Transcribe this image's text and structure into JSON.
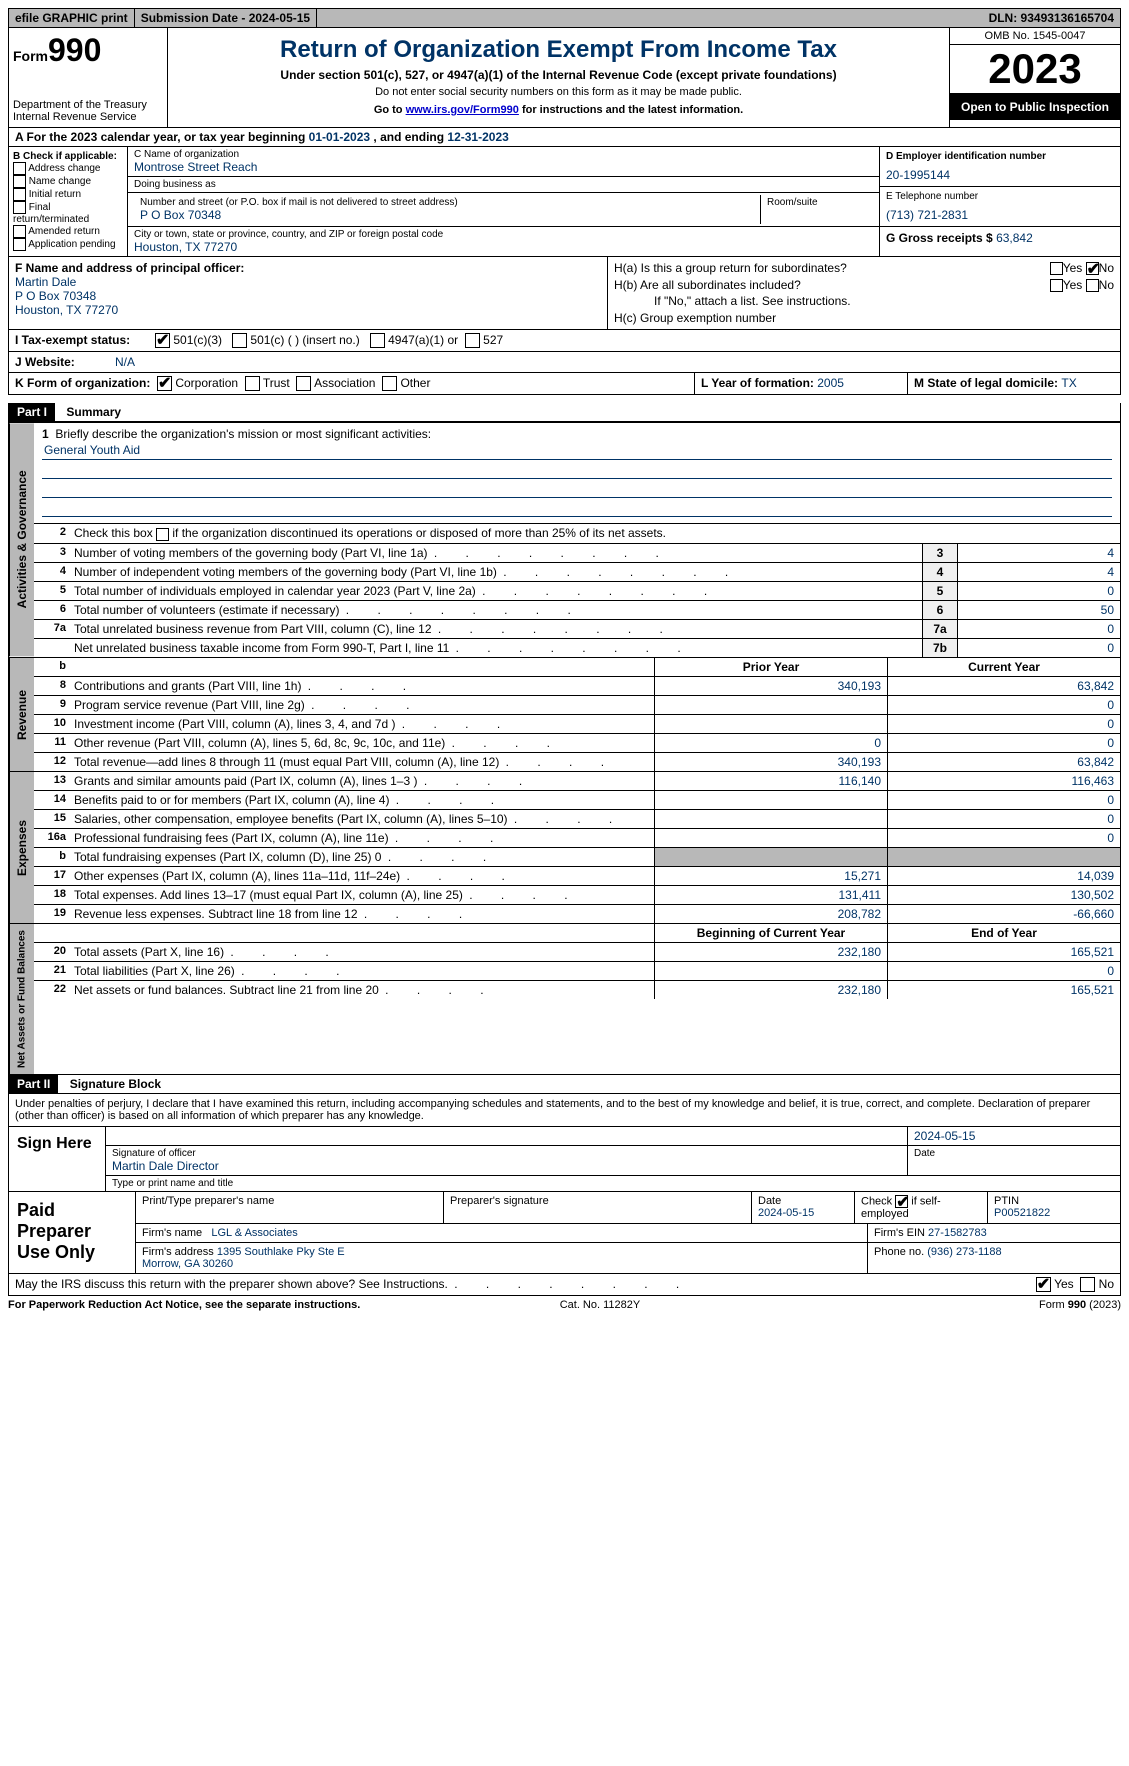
{
  "top": {
    "efile": "efile GRAPHIC print",
    "submission": "Submission Date - 2024-05-15",
    "dln": "DLN: 93493136165704"
  },
  "header": {
    "form_prefix": "Form",
    "form_number": "990",
    "dept": "Department of the Treasury\nInternal Revenue Service",
    "title": "Return of Organization Exempt From Income Tax",
    "subtitle": "Under section 501(c), 527, or 4947(a)(1) of the Internal Revenue Code (except private foundations)",
    "note1": "Do not enter social security numbers on this form as it may be made public.",
    "note2_pre": "Go to ",
    "note2_link": "www.irs.gov/Form990",
    "note2_post": " for instructions and the latest information.",
    "omb": "OMB No. 1545-0047",
    "year": "2023",
    "inspect": "Open to Public Inspection"
  },
  "period": {
    "label_a": "A For the 2023 calendar year, or tax year beginning ",
    "begin": "01-01-2023",
    "mid": " , and ending ",
    "end": "12-31-2023"
  },
  "box_b": {
    "heading": "B Check if applicable:",
    "items": [
      "Address change",
      "Name change",
      "Initial return",
      "Final return/terminated",
      "Amended return",
      "Application pending"
    ]
  },
  "box_c": {
    "name_lbl": "C Name of organization",
    "name": "Montrose Street Reach",
    "dba_lbl": "Doing business as",
    "dba": "",
    "street_lbl": "Number and street (or P.O. box if mail is not delivered to street address)",
    "street": "P O Box 70348",
    "room_lbl": "Room/suite",
    "room": "",
    "city_lbl": "City or town, state or province, country, and ZIP or foreign postal code",
    "city": "Houston, TX  77270"
  },
  "box_d": {
    "ein_lbl": "D Employer identification number",
    "ein": "20-1995144",
    "phone_lbl": "E Telephone number",
    "phone": "(713) 721-2831",
    "gross_lbl": "G Gross receipts $ ",
    "gross": "63,842"
  },
  "box_f": {
    "lbl": "F Name and address of principal officer:",
    "name": "Martin Dale",
    "addr1": "P O Box 70348",
    "addr2": "Houston, TX  77270"
  },
  "box_h": {
    "a_lbl": "H(a) Is this a group return for subordinates?",
    "a_yes": "Yes",
    "a_no": "No",
    "b_lbl": "H(b) Are all subordinates included?",
    "b_yes": "Yes",
    "b_no": "No",
    "b_note": "If \"No,\" attach a list. See instructions.",
    "c_lbl": "H(c) Group exemption number"
  },
  "tax_status": {
    "label": "I   Tax-exempt status:",
    "opt1": "501(c)(3)",
    "opt2": "501(c) (  ) (insert no.)",
    "opt3": "4947(a)(1) or",
    "opt4": "527"
  },
  "website": {
    "label": "J   Website:",
    "value": "N/A"
  },
  "box_k": {
    "label": "K Form of organization:",
    "corp": "Corporation",
    "trust": "Trust",
    "assoc": "Association",
    "other": "Other"
  },
  "box_l": {
    "label": "L Year of formation: ",
    "value": "2005"
  },
  "box_m": {
    "label": "M State of legal domicile: ",
    "value": "TX"
  },
  "part1": {
    "header": "Part I",
    "title": "Summary",
    "q1_lbl": "Briefly describe the organization's mission or most significant activities:",
    "q1_val": "General Youth Aid",
    "q2": "Check this box  if the organization discontinued its operations or disposed of more than 25% of its net assets.",
    "rows_gov": [
      {
        "n": "3",
        "d": "Number of voting members of the governing body (Part VI, line 1a)",
        "box": "3",
        "v": "4"
      },
      {
        "n": "4",
        "d": "Number of independent voting members of the governing body (Part VI, line 1b)",
        "box": "4",
        "v": "4"
      },
      {
        "n": "5",
        "d": "Total number of individuals employed in calendar year 2023 (Part V, line 2a)",
        "box": "5",
        "v": "0"
      },
      {
        "n": "6",
        "d": "Total number of volunteers (estimate if necessary)",
        "box": "6",
        "v": "50"
      },
      {
        "n": "7a",
        "d": "Total unrelated business revenue from Part VIII, column (C), line 12",
        "box": "7a",
        "v": "0"
      },
      {
        "n": "",
        "d": "Net unrelated business taxable income from Form 990-T, Part I, line 11",
        "box": "7b",
        "v": "0"
      }
    ],
    "col_prior": "Prior Year",
    "col_current": "Current Year",
    "rows_rev": [
      {
        "n": "8",
        "d": "Contributions and grants (Part VIII, line 1h)",
        "p": "340,193",
        "c": "63,842"
      },
      {
        "n": "9",
        "d": "Program service revenue (Part VIII, line 2g)",
        "p": "",
        "c": "0"
      },
      {
        "n": "10",
        "d": "Investment income (Part VIII, column (A), lines 3, 4, and 7d )",
        "p": "",
        "c": "0"
      },
      {
        "n": "11",
        "d": "Other revenue (Part VIII, column (A), lines 5, 6d, 8c, 9c, 10c, and 11e)",
        "p": "0",
        "c": "0"
      },
      {
        "n": "12",
        "d": "Total revenue—add lines 8 through 11 (must equal Part VIII, column (A), line 12)",
        "p": "340,193",
        "c": "63,842"
      }
    ],
    "rows_exp": [
      {
        "n": "13",
        "d": "Grants and similar amounts paid (Part IX, column (A), lines 1–3 )",
        "p": "116,140",
        "c": "116,463"
      },
      {
        "n": "14",
        "d": "Benefits paid to or for members (Part IX, column (A), line 4)",
        "p": "",
        "c": "0"
      },
      {
        "n": "15",
        "d": "Salaries, other compensation, employee benefits (Part IX, column (A), lines 5–10)",
        "p": "",
        "c": "0"
      },
      {
        "n": "16a",
        "d": "Professional fundraising fees (Part IX, column (A), line 11e)",
        "p": "",
        "c": "0"
      },
      {
        "n": "b",
        "d": "Total fundraising expenses (Part IX, column (D), line 25) 0",
        "p": "GRAY",
        "c": "GRAY"
      },
      {
        "n": "17",
        "d": "Other expenses (Part IX, column (A), lines 11a–11d, 11f–24e)",
        "p": "15,271",
        "c": "14,039"
      },
      {
        "n": "18",
        "d": "Total expenses. Add lines 13–17 (must equal Part IX, column (A), line 25)",
        "p": "131,411",
        "c": "130,502"
      },
      {
        "n": "19",
        "d": "Revenue less expenses. Subtract line 18 from line 12",
        "p": "208,782",
        "c": "-66,660"
      }
    ],
    "col_begin": "Beginning of Current Year",
    "col_end": "End of Year",
    "rows_net": [
      {
        "n": "20",
        "d": "Total assets (Part X, line 16)",
        "p": "232,180",
        "c": "165,521"
      },
      {
        "n": "21",
        "d": "Total liabilities (Part X, line 26)",
        "p": "",
        "c": "0"
      },
      {
        "n": "22",
        "d": "Net assets or fund balances. Subtract line 21 from line 20",
        "p": "232,180",
        "c": "165,521"
      }
    ],
    "side_gov": "Activities & Governance",
    "side_rev": "Revenue",
    "side_exp": "Expenses",
    "side_net": "Net Assets or Fund Balances"
  },
  "part2": {
    "header": "Part II",
    "title": "Signature Block",
    "decl": "Under penalties of perjury, I declare that I have examined this return, including accompanying schedules and statements, and to the best of my knowledge and belief, it is true, correct, and complete. Declaration of preparer (other than officer) is based on all information of which preparer has any knowledge.",
    "sign_here": "Sign Here",
    "sig_lbl": "Signature of officer",
    "sig_name": "Martin Dale  Director",
    "sig_type_lbl": "Type or print name and title",
    "date_lbl": "Date",
    "date_val": "2024-05-15",
    "paid": "Paid Preparer Use Only",
    "prep_name_lbl": "Print/Type preparer's name",
    "prep_sig_lbl": "Preparer's signature",
    "prep_date": "2024-05-15",
    "self_emp": "Check         if self-employed",
    "ptin_lbl": "PTIN",
    "ptin": "P00521822",
    "firm_name_lbl": "Firm's name",
    "firm_name": "LGL & Associates",
    "firm_ein_lbl": "Firm's EIN",
    "firm_ein": "27-1582783",
    "firm_addr_lbl": "Firm's address",
    "firm_addr": "1395 Southlake Pky Ste E\nMorrow, GA  30260",
    "firm_phone_lbl": "Phone no.",
    "firm_phone": "(936) 273-1188",
    "discuss": "May the IRS discuss this return with the preparer shown above? See Instructions.",
    "yes": "Yes",
    "no": "No"
  },
  "footer": {
    "left": "For Paperwork Reduction Act Notice, see the separate instructions.",
    "mid": "Cat. No. 11282Y",
    "right": "Form 990 (2023)"
  }
}
